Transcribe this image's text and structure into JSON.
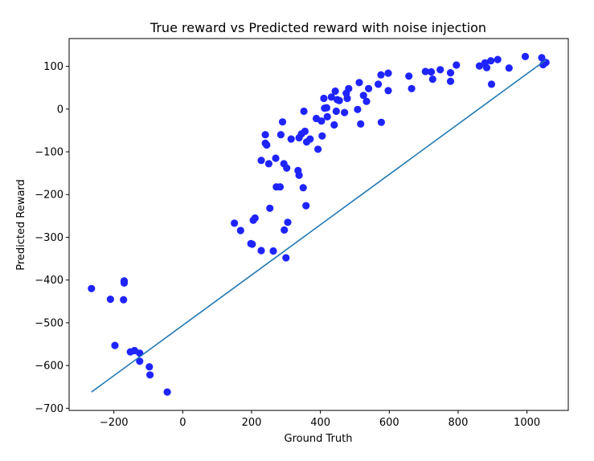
{
  "chart_data": {
    "type": "scatter",
    "title": "True reward vs Predicted reward with noise injection",
    "xlabel": "Ground Truth",
    "ylabel": "Predicted Reward",
    "xlim": [
      -330,
      1120
    ],
    "ylim": [
      -705,
      165
    ],
    "xticks": [
      -200,
      0,
      200,
      400,
      600,
      800,
      1000
    ],
    "yticks": [
      -700,
      -600,
      -500,
      -400,
      -300,
      -200,
      -100,
      0,
      100
    ],
    "xtick_labels": [
      "−200",
      "0",
      "200",
      "400",
      "600",
      "800",
      "1000"
    ],
    "ytick_labels": [
      "−700",
      "−600",
      "−500",
      "−400",
      "−300",
      "−200",
      "−100",
      "0",
      "100"
    ],
    "grid": false,
    "scatter_color": "#1f24ff",
    "line_color": "#1f77b4",
    "line": {
      "x": [
        -265,
        1055
      ],
      "y": [
        -662,
        115
      ]
    },
    "points": [
      [
        -265,
        -420
      ],
      [
        -210,
        -445
      ],
      [
        -170,
        -402
      ],
      [
        -170,
        -407
      ],
      [
        -172,
        -446
      ],
      [
        -197,
        -553
      ],
      [
        -152,
        -568
      ],
      [
        -140,
        -565
      ],
      [
        -125,
        -571
      ],
      [
        -125,
        -590
      ],
      [
        -97,
        -603
      ],
      [
        -95,
        -622
      ],
      [
        -45,
        -662
      ],
      [
        150,
        -267
      ],
      [
        168,
        -284
      ],
      [
        198,
        -315
      ],
      [
        202,
        -316
      ],
      [
        205,
        -260
      ],
      [
        210,
        -255
      ],
      [
        228,
        -331
      ],
      [
        228,
        -120
      ],
      [
        240,
        -60
      ],
      [
        240,
        -80
      ],
      [
        244,
        -84
      ],
      [
        250,
        -128
      ],
      [
        253,
        -232
      ],
      [
        263,
        -332
      ],
      [
        270,
        -115
      ],
      [
        272,
        -182
      ],
      [
        283,
        -182
      ],
      [
        285,
        -60
      ],
      [
        290,
        -30
      ],
      [
        294,
        -128
      ],
      [
        295,
        -283
      ],
      [
        300,
        -348
      ],
      [
        302,
        -138
      ],
      [
        305,
        -265
      ],
      [
        315,
        -70
      ],
      [
        335,
        -144
      ],
      [
        338,
        -155
      ],
      [
        338,
        -67
      ],
      [
        345,
        -58
      ],
      [
        350,
        -184
      ],
      [
        352,
        -5
      ],
      [
        355,
        -52
      ],
      [
        358,
        -226
      ],
      [
        360,
        -77
      ],
      [
        370,
        -70
      ],
      [
        388,
        -22
      ],
      [
        393,
        -94
      ],
      [
        403,
        -28
      ],
      [
        405,
        -63
      ],
      [
        410,
        25
      ],
      [
        412,
        2
      ],
      [
        418,
        3
      ],
      [
        420,
        -18
      ],
      [
        432,
        28
      ],
      [
        440,
        -37
      ],
      [
        443,
        42
      ],
      [
        446,
        -5
      ],
      [
        449,
        22
      ],
      [
        455,
        20
      ],
      [
        470,
        -8
      ],
      [
        475,
        37
      ],
      [
        478,
        25
      ],
      [
        482,
        48
      ],
      [
        508,
        -1
      ],
      [
        513,
        62
      ],
      [
        517,
        -35
      ],
      [
        525,
        32
      ],
      [
        534,
        18
      ],
      [
        540,
        48
      ],
      [
        568,
        58
      ],
      [
        576,
        80
      ],
      [
        577,
        -31
      ],
      [
        597,
        84
      ],
      [
        597,
        43
      ],
      [
        657,
        77
      ],
      [
        665,
        48
      ],
      [
        705,
        88
      ],
      [
        722,
        87
      ],
      [
        726,
        70
      ],
      [
        748,
        92
      ],
      [
        778,
        65
      ],
      [
        778,
        85
      ],
      [
        795,
        103
      ],
      [
        862,
        101
      ],
      [
        878,
        108
      ],
      [
        883,
        97
      ],
      [
        895,
        113
      ],
      [
        897,
        58
      ],
      [
        915,
        116
      ],
      [
        948,
        96
      ],
      [
        995,
        123
      ],
      [
        1043,
        120
      ],
      [
        1047,
        104
      ],
      [
        1055,
        109
      ]
    ]
  }
}
